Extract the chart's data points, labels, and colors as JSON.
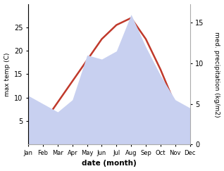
{
  "months": [
    "Jan",
    "Feb",
    "Mar",
    "Apr",
    "May",
    "Jun",
    "Jul",
    "Aug",
    "Sep",
    "Oct",
    "Nov",
    "Dec"
  ],
  "month_positions": [
    1,
    2,
    3,
    4,
    5,
    6,
    7,
    8,
    9,
    10,
    11,
    12
  ],
  "temp_max": [
    3.0,
    4.5,
    9.0,
    13.5,
    18.0,
    22.5,
    25.5,
    27.0,
    22.5,
    16.0,
    8.5,
    3.5
  ],
  "precip": [
    6.0,
    5.0,
    4.0,
    5.5,
    11.0,
    10.5,
    11.5,
    16.0,
    12.0,
    8.5,
    5.5,
    4.5
  ],
  "temp_color": "#c0392b",
  "precip_color_fill": "#c8d0f0",
  "temp_ylim": [
    0,
    30
  ],
  "precip_ylim": [
    0,
    17.3
  ],
  "temp_yticks": [
    5,
    10,
    15,
    20,
    25
  ],
  "precip_yticks": [
    0,
    5,
    10,
    15
  ],
  "ylabel_temp": "max temp (C)",
  "ylabel_precip": "med. precipitation (kg/m2)",
  "xlabel": "date (month)",
  "background_color": "#ffffff"
}
